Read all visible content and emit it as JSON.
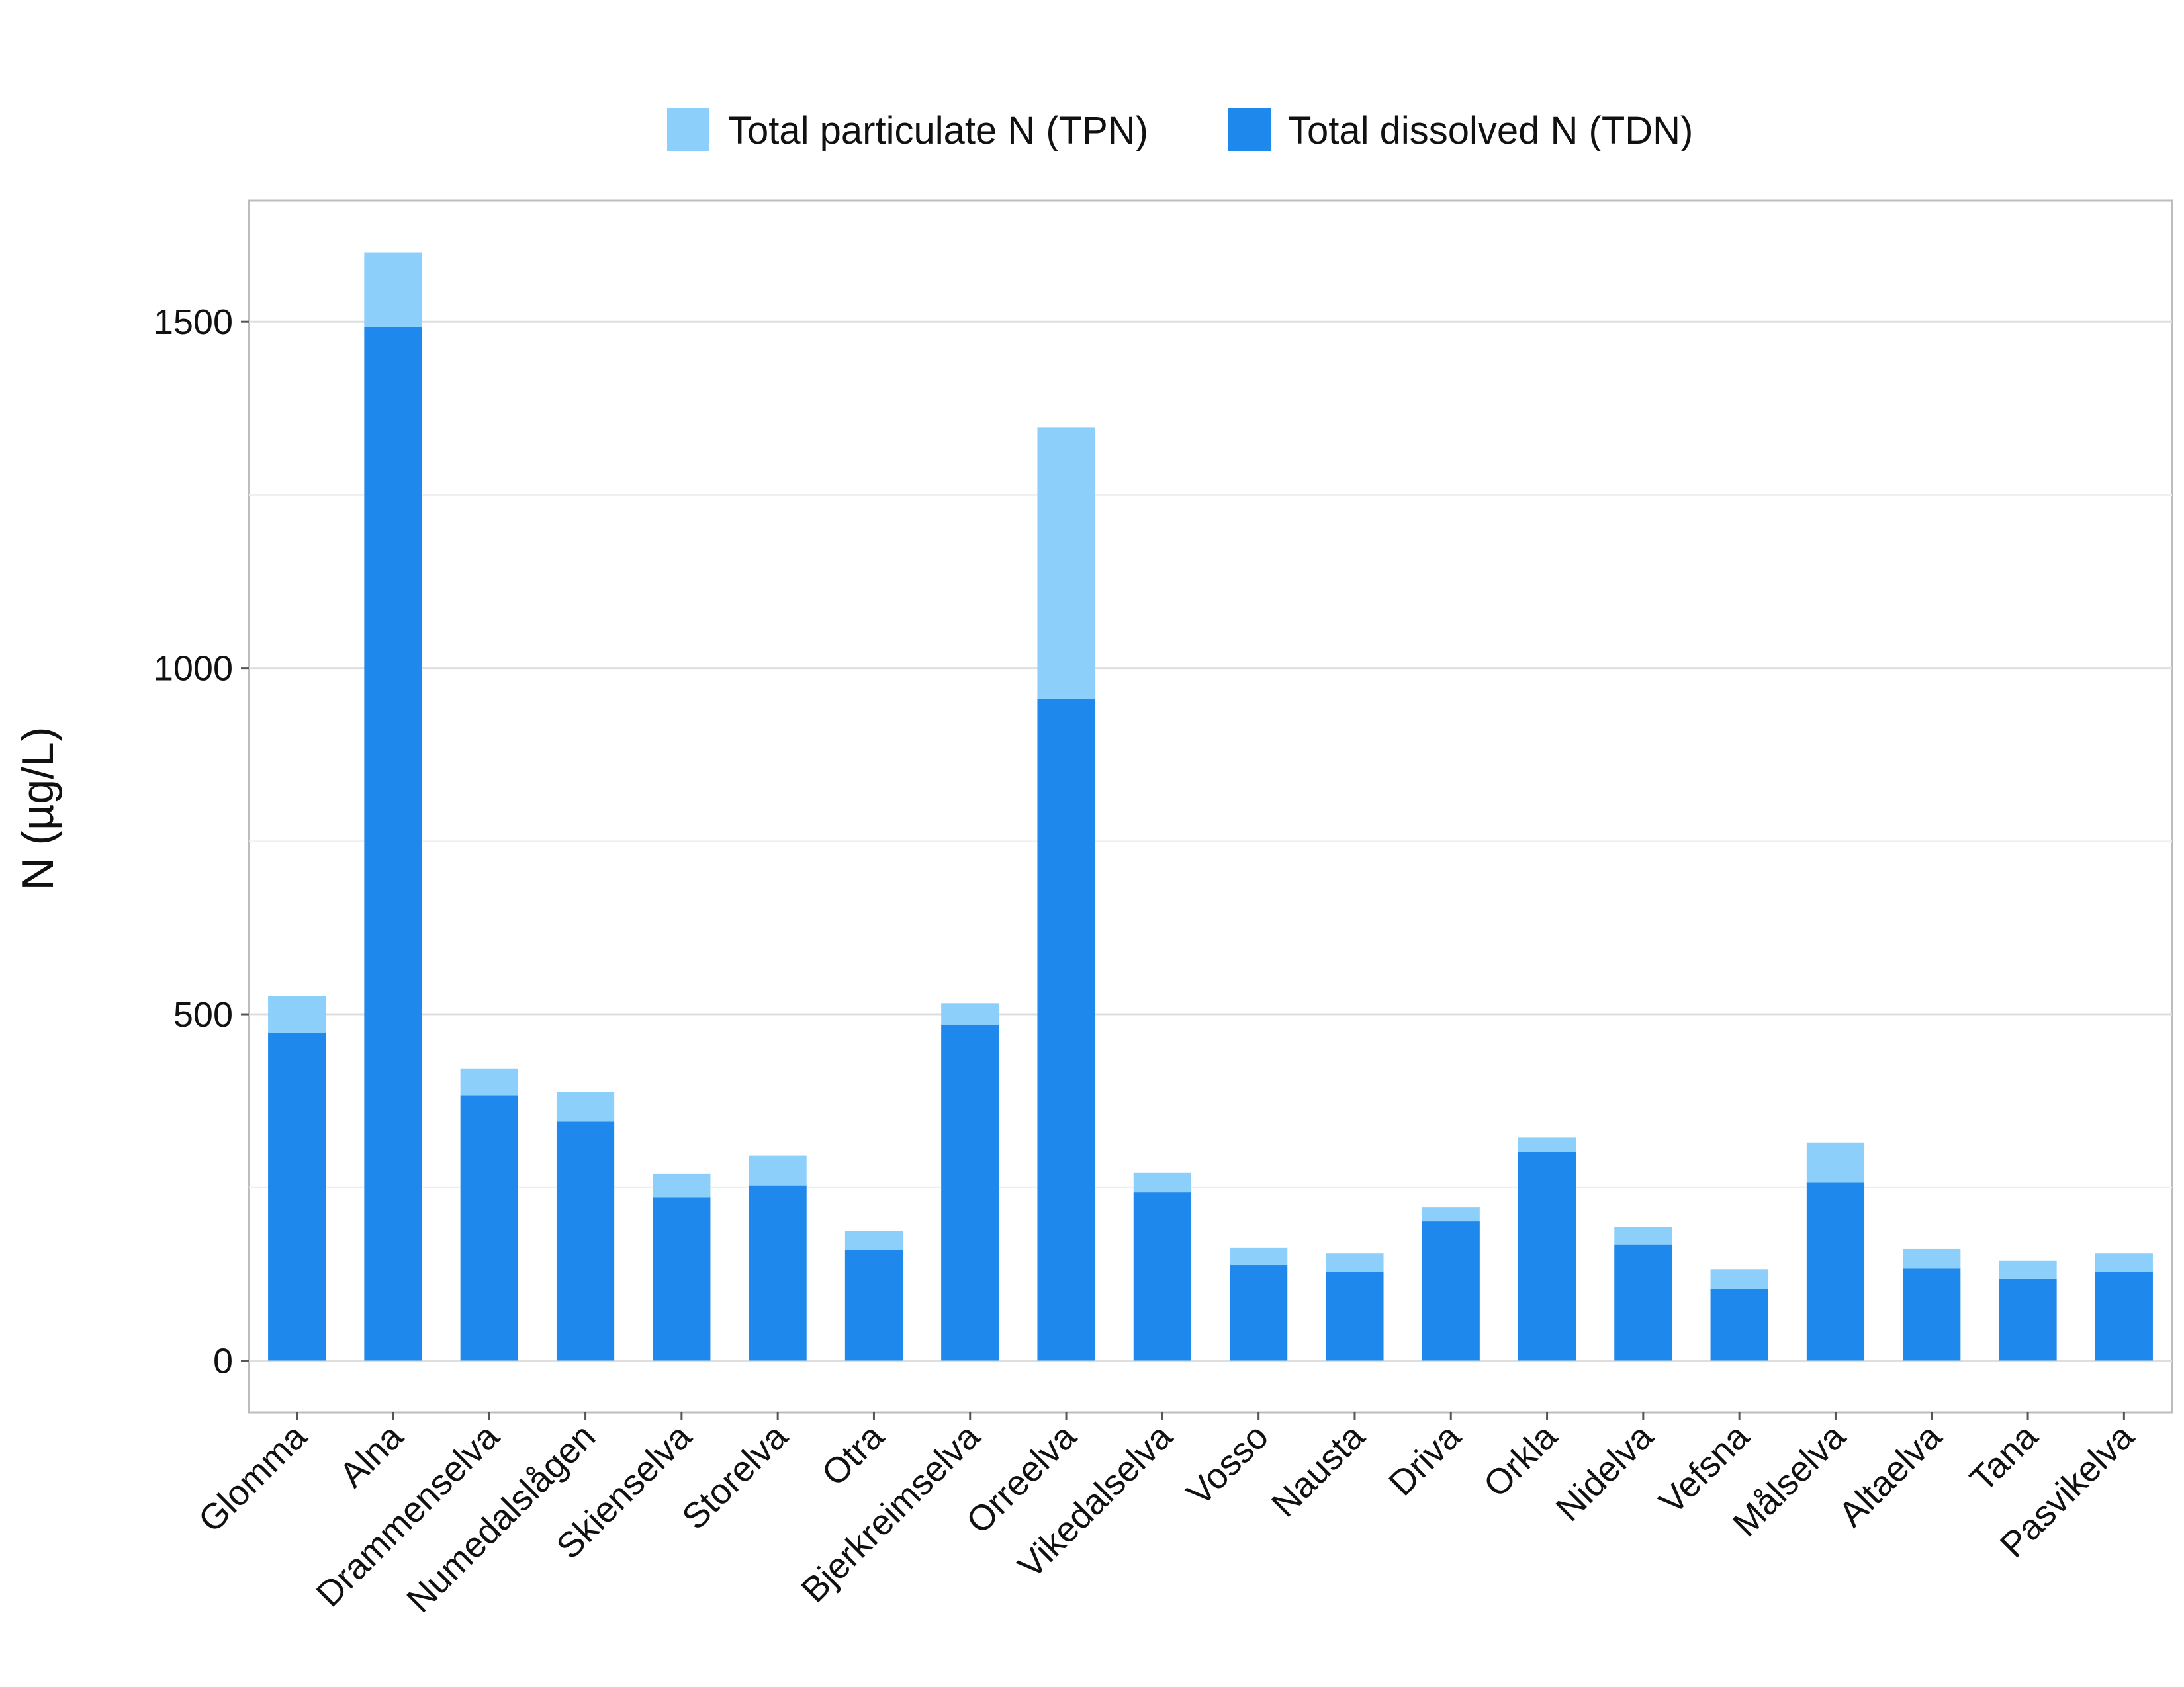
{
  "chart_data": {
    "type": "bar",
    "stacked": true,
    "title": "",
    "xlabel": "",
    "ylabel": "N (µg/L)",
    "ylim": [
      -75,
      1675
    ],
    "yticks": [
      0,
      500,
      1000,
      1500
    ],
    "grid": true,
    "legend_position": "top",
    "categories": [
      "Glomma",
      "Alna",
      "Drammenselva",
      "Numedalslågen",
      "Skienselva",
      "Storelva",
      "Otra",
      "Bjerkreimselva",
      "Orreelva",
      "Vikedalselva",
      "Vosso",
      "Nausta",
      "Driva",
      "Orkla",
      "Nidelva",
      "Vefsna",
      "Målselva",
      "Altaelva",
      "Tana",
      "Pasvikelva"
    ],
    "series": [
      {
        "name": "Total dissolved N (TDN)",
        "color": "#1e88ec",
        "values": [
          473,
          1492,
          383,
          345,
          235,
          253,
          160,
          485,
          955,
          243,
          138,
          128,
          201,
          301,
          167,
          103,
          257,
          133,
          118,
          128
        ]
      },
      {
        "name": "Total particulate N (TPN)",
        "color": "#8ccffb",
        "values": [
          53,
          108,
          38,
          43,
          35,
          43,
          27,
          31,
          392,
          28,
          25,
          27,
          20,
          21,
          26,
          29,
          58,
          28,
          26,
          27
        ]
      }
    ],
    "legend_order": [
      1,
      0
    ]
  }
}
